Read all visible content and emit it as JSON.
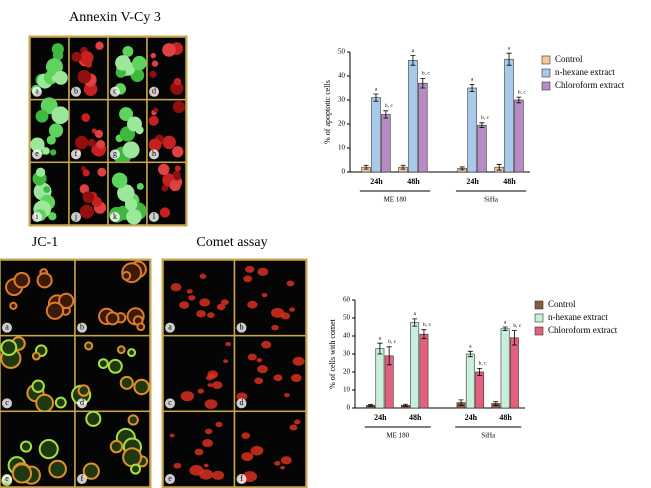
{
  "panels": [
    {
      "title": "Annexin V-Cy 3",
      "labels": [
        "a",
        "b",
        "c",
        "d",
        "e",
        "f",
        "g",
        "h",
        "i",
        "j",
        "k",
        "l"
      ]
    },
    {
      "title": "JC-1",
      "labels": [
        "a",
        "b",
        "c",
        "d",
        "e",
        "f"
      ]
    },
    {
      "title": "Comet assay",
      "labels": [
        "a",
        "b",
        "c",
        "d",
        "e",
        "f"
      ]
    }
  ],
  "chart_data": [
    {
      "type": "bar",
      "y_label": "% of apoptotic cells",
      "categories": [
        "24h",
        "48h",
        "24h",
        "48h"
      ],
      "groups": [
        "ME 180",
        "SiHa"
      ],
      "ylim": [
        0,
        50
      ],
      "yticks": [
        0,
        10,
        20,
        30,
        40,
        50
      ],
      "series": [
        {
          "name": "Control",
          "color": "#f5c89a",
          "values": [
            2,
            2,
            1.5,
            2
          ],
          "errors": [
            0.8,
            0.8,
            0.6,
            1.2
          ]
        },
        {
          "name": "n-hexane extract",
          "color": "#a9c9ea",
          "values": [
            31,
            46.5,
            35,
            47
          ],
          "errors": [
            1.5,
            2,
            1.5,
            2.5
          ],
          "labels": [
            "a",
            "a",
            "a",
            "a"
          ]
        },
        {
          "name": "Chloroform extract",
          "color": "#b78cc4",
          "values": [
            24,
            37,
            19.5,
            30
          ],
          "errors": [
            1.5,
            2,
            1,
            1.2
          ],
          "labels": [
            "b, c",
            "b, c",
            "b, c",
            "b, c"
          ]
        }
      ]
    },
    {
      "type": "bar",
      "y_label": "% of cells with comet",
      "categories": [
        "24h",
        "48h",
        "24h",
        "48h"
      ],
      "groups": [
        "ME 180",
        "SiHa"
      ],
      "ylim": [
        0,
        60
      ],
      "yticks": [
        0,
        10,
        20,
        30,
        40,
        50,
        60
      ],
      "series": [
        {
          "name": "Control",
          "color": "#8a5a3a",
          "values": [
            1.5,
            1.5,
            3,
            2.5
          ],
          "errors": [
            0.5,
            0.6,
            1.5,
            1
          ]
        },
        {
          "name": "n-hexane extract",
          "color": "#c9eedb",
          "values": [
            33,
            47.5,
            30,
            44
          ],
          "errors": [
            3,
            2,
            1.5,
            1
          ],
          "labels": [
            "a",
            "a",
            "a",
            "a"
          ]
        },
        {
          "name": "Chloroform extract",
          "color": "#e3607f",
          "values": [
            29,
            41,
            20,
            39
          ],
          "errors": [
            5,
            2.5,
            2,
            4
          ],
          "labels": [
            "b, c",
            "b, c",
            "b, c",
            "b, c"
          ]
        }
      ]
    }
  ]
}
